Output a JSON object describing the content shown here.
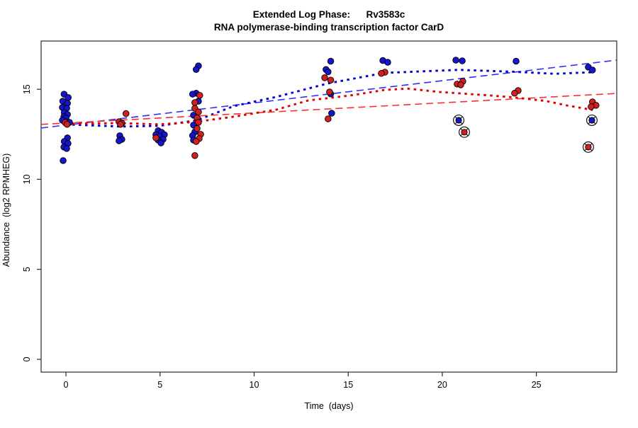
{
  "chart_data": {
    "type": "scatter",
    "title": "Extended Log Phase:      Rv3583c",
    "subtitle": "RNA polymerase-binding transcription factor CarD",
    "xlabel": "Time  (days)",
    "ylabel": "Abundance  (log2 RPMHEG)",
    "xlim": [
      -1.32,
      29.27
    ],
    "ylim": [
      -0.71,
      17.68
    ],
    "xticks": [
      0,
      5,
      10,
      15,
      20,
      25
    ],
    "yticks": [
      0,
      5,
      10,
      15
    ],
    "grid": false,
    "legend": "none",
    "frame_color": "#2a2a2a",
    "series": [
      {
        "name": "series_blue",
        "point_color": "#1515CE",
        "point_edge": "#000000",
        "points": [
          [
            -0.1,
            14.73
          ],
          [
            0.12,
            14.54
          ],
          [
            -0.17,
            14.34
          ],
          [
            0.08,
            14.22
          ],
          [
            -0.19,
            13.99
          ],
          [
            0.04,
            13.95
          ],
          [
            -0.09,
            13.71
          ],
          [
            0.08,
            13.6
          ],
          [
            -0.11,
            13.48
          ],
          [
            0.0,
            13.4
          ],
          [
            -0.19,
            13.28
          ],
          [
            0.0,
            13.2
          ],
          [
            0.19,
            13.16
          ],
          [
            0.08,
            12.3
          ],
          [
            -0.09,
            12.1
          ],
          [
            0.11,
            11.99
          ],
          [
            -0.11,
            11.79
          ],
          [
            0.04,
            11.71
          ],
          [
            -0.15,
            11.04
          ],
          [
            2.86,
            12.42
          ],
          [
            2.97,
            12.22
          ],
          [
            2.82,
            12.14
          ],
          [
            4.9,
            12.7
          ],
          [
            5.08,
            12.61
          ],
          [
            4.78,
            12.48
          ],
          [
            5.23,
            12.48
          ],
          [
            4.97,
            12.38
          ],
          [
            5.16,
            12.22
          ],
          [
            4.9,
            12.18
          ],
          [
            5.05,
            12.02
          ],
          [
            7.04,
            16.3
          ],
          [
            6.92,
            16.1
          ],
          [
            6.92,
            14.78
          ],
          [
            6.73,
            14.73
          ],
          [
            7.04,
            14.34
          ],
          [
            6.78,
            13.56
          ],
          [
            6.78,
            13.01
          ],
          [
            6.85,
            12.63
          ],
          [
            6.73,
            12.43
          ],
          [
            6.78,
            12.18
          ],
          [
            14.07,
            16.56
          ],
          [
            13.82,
            16.1
          ],
          [
            13.93,
            15.97
          ],
          [
            14.07,
            14.74
          ],
          [
            14.12,
            13.67
          ],
          [
            16.84,
            16.6
          ],
          [
            17.1,
            16.5
          ],
          [
            20.72,
            16.62
          ],
          [
            21.06,
            16.58
          ],
          [
            23.92,
            16.56
          ],
          [
            27.76,
            16.23
          ],
          [
            27.98,
            16.07
          ]
        ],
        "circled_points": [
          [
            20.87,
            13.28
          ],
          [
            27.95,
            13.28
          ]
        ],
        "trend_linear": {
          "style": "longdash",
          "color": "#2E2EFF",
          "x": [
            -1.32,
            29.27
          ],
          "y": [
            12.85,
            16.62
          ]
        },
        "trend_lowess": {
          "style": "dotted",
          "color": "#0000D0",
          "points": [
            [
              0,
              13.05
            ],
            [
              2.9,
              12.93
            ],
            [
              4.97,
              12.97
            ],
            [
              6.97,
              13.28
            ],
            [
              8.93,
              14.07
            ],
            [
              11.19,
              14.58
            ],
            [
              13.9,
              15.32
            ],
            [
              16.91,
              15.91
            ],
            [
              20.87,
              16.08
            ],
            [
              23.88,
              15.97
            ],
            [
              26.0,
              15.86
            ],
            [
              28.0,
              15.95
            ]
          ]
        }
      },
      {
        "name": "series_red",
        "point_color": "#D31F1F",
        "point_edge": "#000000",
        "points": [
          [
            -0.04,
            13.15
          ],
          [
            0.06,
            13.05
          ],
          [
            3.19,
            13.65
          ],
          [
            2.82,
            13.2
          ],
          [
            2.97,
            13.12
          ],
          [
            2.9,
            13.05
          ],
          [
            4.78,
            12.3
          ],
          [
            7.11,
            14.66
          ],
          [
            6.85,
            14.26
          ],
          [
            6.85,
            13.94
          ],
          [
            7.04,
            13.74
          ],
          [
            6.97,
            13.41
          ],
          [
            7.04,
            13.16
          ],
          [
            6.97,
            12.82
          ],
          [
            7.16,
            12.5
          ],
          [
            7.08,
            12.26
          ],
          [
            6.92,
            12.1
          ],
          [
            6.85,
            11.32
          ],
          [
            13.75,
            15.64
          ],
          [
            14.07,
            15.51
          ],
          [
            14.01,
            14.85
          ],
          [
            13.93,
            13.36
          ],
          [
            16.95,
            15.95
          ],
          [
            16.76,
            15.88
          ],
          [
            21.09,
            15.44
          ],
          [
            20.79,
            15.29
          ],
          [
            20.98,
            15.25
          ],
          [
            24.03,
            14.93
          ],
          [
            23.84,
            14.78
          ],
          [
            27.98,
            14.3
          ],
          [
            28.17,
            14.11
          ],
          [
            27.91,
            14.03
          ]
        ],
        "circled_points": [
          [
            21.17,
            12.62
          ],
          [
            27.76,
            11.79
          ]
        ],
        "trend_linear": {
          "style": "longdash",
          "color": "#FF2E2E",
          "x": [
            -1.32,
            29.27
          ],
          "y": [
            13.05,
            14.77
          ]
        },
        "trend_lowess": {
          "style": "dotted",
          "color": "#E00000",
          "points": [
            [
              0,
              13.09
            ],
            [
              2.9,
              13.12
            ],
            [
              4.97,
              13.05
            ],
            [
              6.97,
              13.2
            ],
            [
              8.93,
              13.48
            ],
            [
              11.19,
              13.87
            ],
            [
              12.88,
              14.38
            ],
            [
              15.14,
              14.66
            ],
            [
              16.91,
              14.96
            ],
            [
              18.15,
              15.04
            ],
            [
              19.85,
              14.85
            ],
            [
              22.49,
              14.66
            ],
            [
              23.88,
              14.54
            ],
            [
              25.5,
              14.35
            ],
            [
              26.63,
              14.1
            ],
            [
              28.0,
              13.85
            ]
          ]
        }
      }
    ],
    "outlier_marker": {
      "shape": "circle-cross",
      "color": "#111111"
    }
  }
}
